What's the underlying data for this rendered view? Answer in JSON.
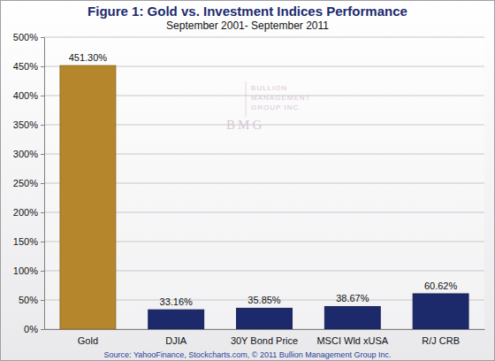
{
  "chart_data": {
    "type": "bar",
    "title": "Figure 1: Gold vs. Investment Indices Performance",
    "subtitle": "September 2001- September 2011",
    "categories": [
      "Gold",
      "DJIA",
      "30Y Bond Price",
      "MSCI Wld xUSA",
      "R/J CRB"
    ],
    "values": [
      451.3,
      33.16,
      35.85,
      38.67,
      60.62
    ],
    "value_labels": [
      "451.30%",
      "33.16%",
      "35.85%",
      "38.67%",
      "60.62%"
    ],
    "colors": [
      "#b5862b",
      "#1c2a6c",
      "#1c2a6c",
      "#1c2a6c",
      "#1c2a6c"
    ],
    "ylim": [
      0,
      500
    ],
    "yticks": [
      {
        "value": 0,
        "label": "0%"
      },
      {
        "value": 50,
        "label": "50%"
      },
      {
        "value": 100,
        "label": "100%"
      },
      {
        "value": 150,
        "label": "150%"
      },
      {
        "value": 200,
        "label": "200%"
      },
      {
        "value": 250,
        "label": "250%"
      },
      {
        "value": 300,
        "label": "300%"
      },
      {
        "value": 350,
        "label": "350%"
      },
      {
        "value": 400,
        "label": "400%"
      },
      {
        "value": 450,
        "label": "450%"
      },
      {
        "value": 500,
        "label": "500%"
      }
    ],
    "grid": true,
    "data_labels": true,
    "source": "Source: YahooFinance, Stockcharts.com, © 2011 Bullion Management Group Inc.",
    "watermark": [
      "BULLION",
      "MANAGEMENT",
      "GROUP INC.",
      "BMG"
    ]
  }
}
